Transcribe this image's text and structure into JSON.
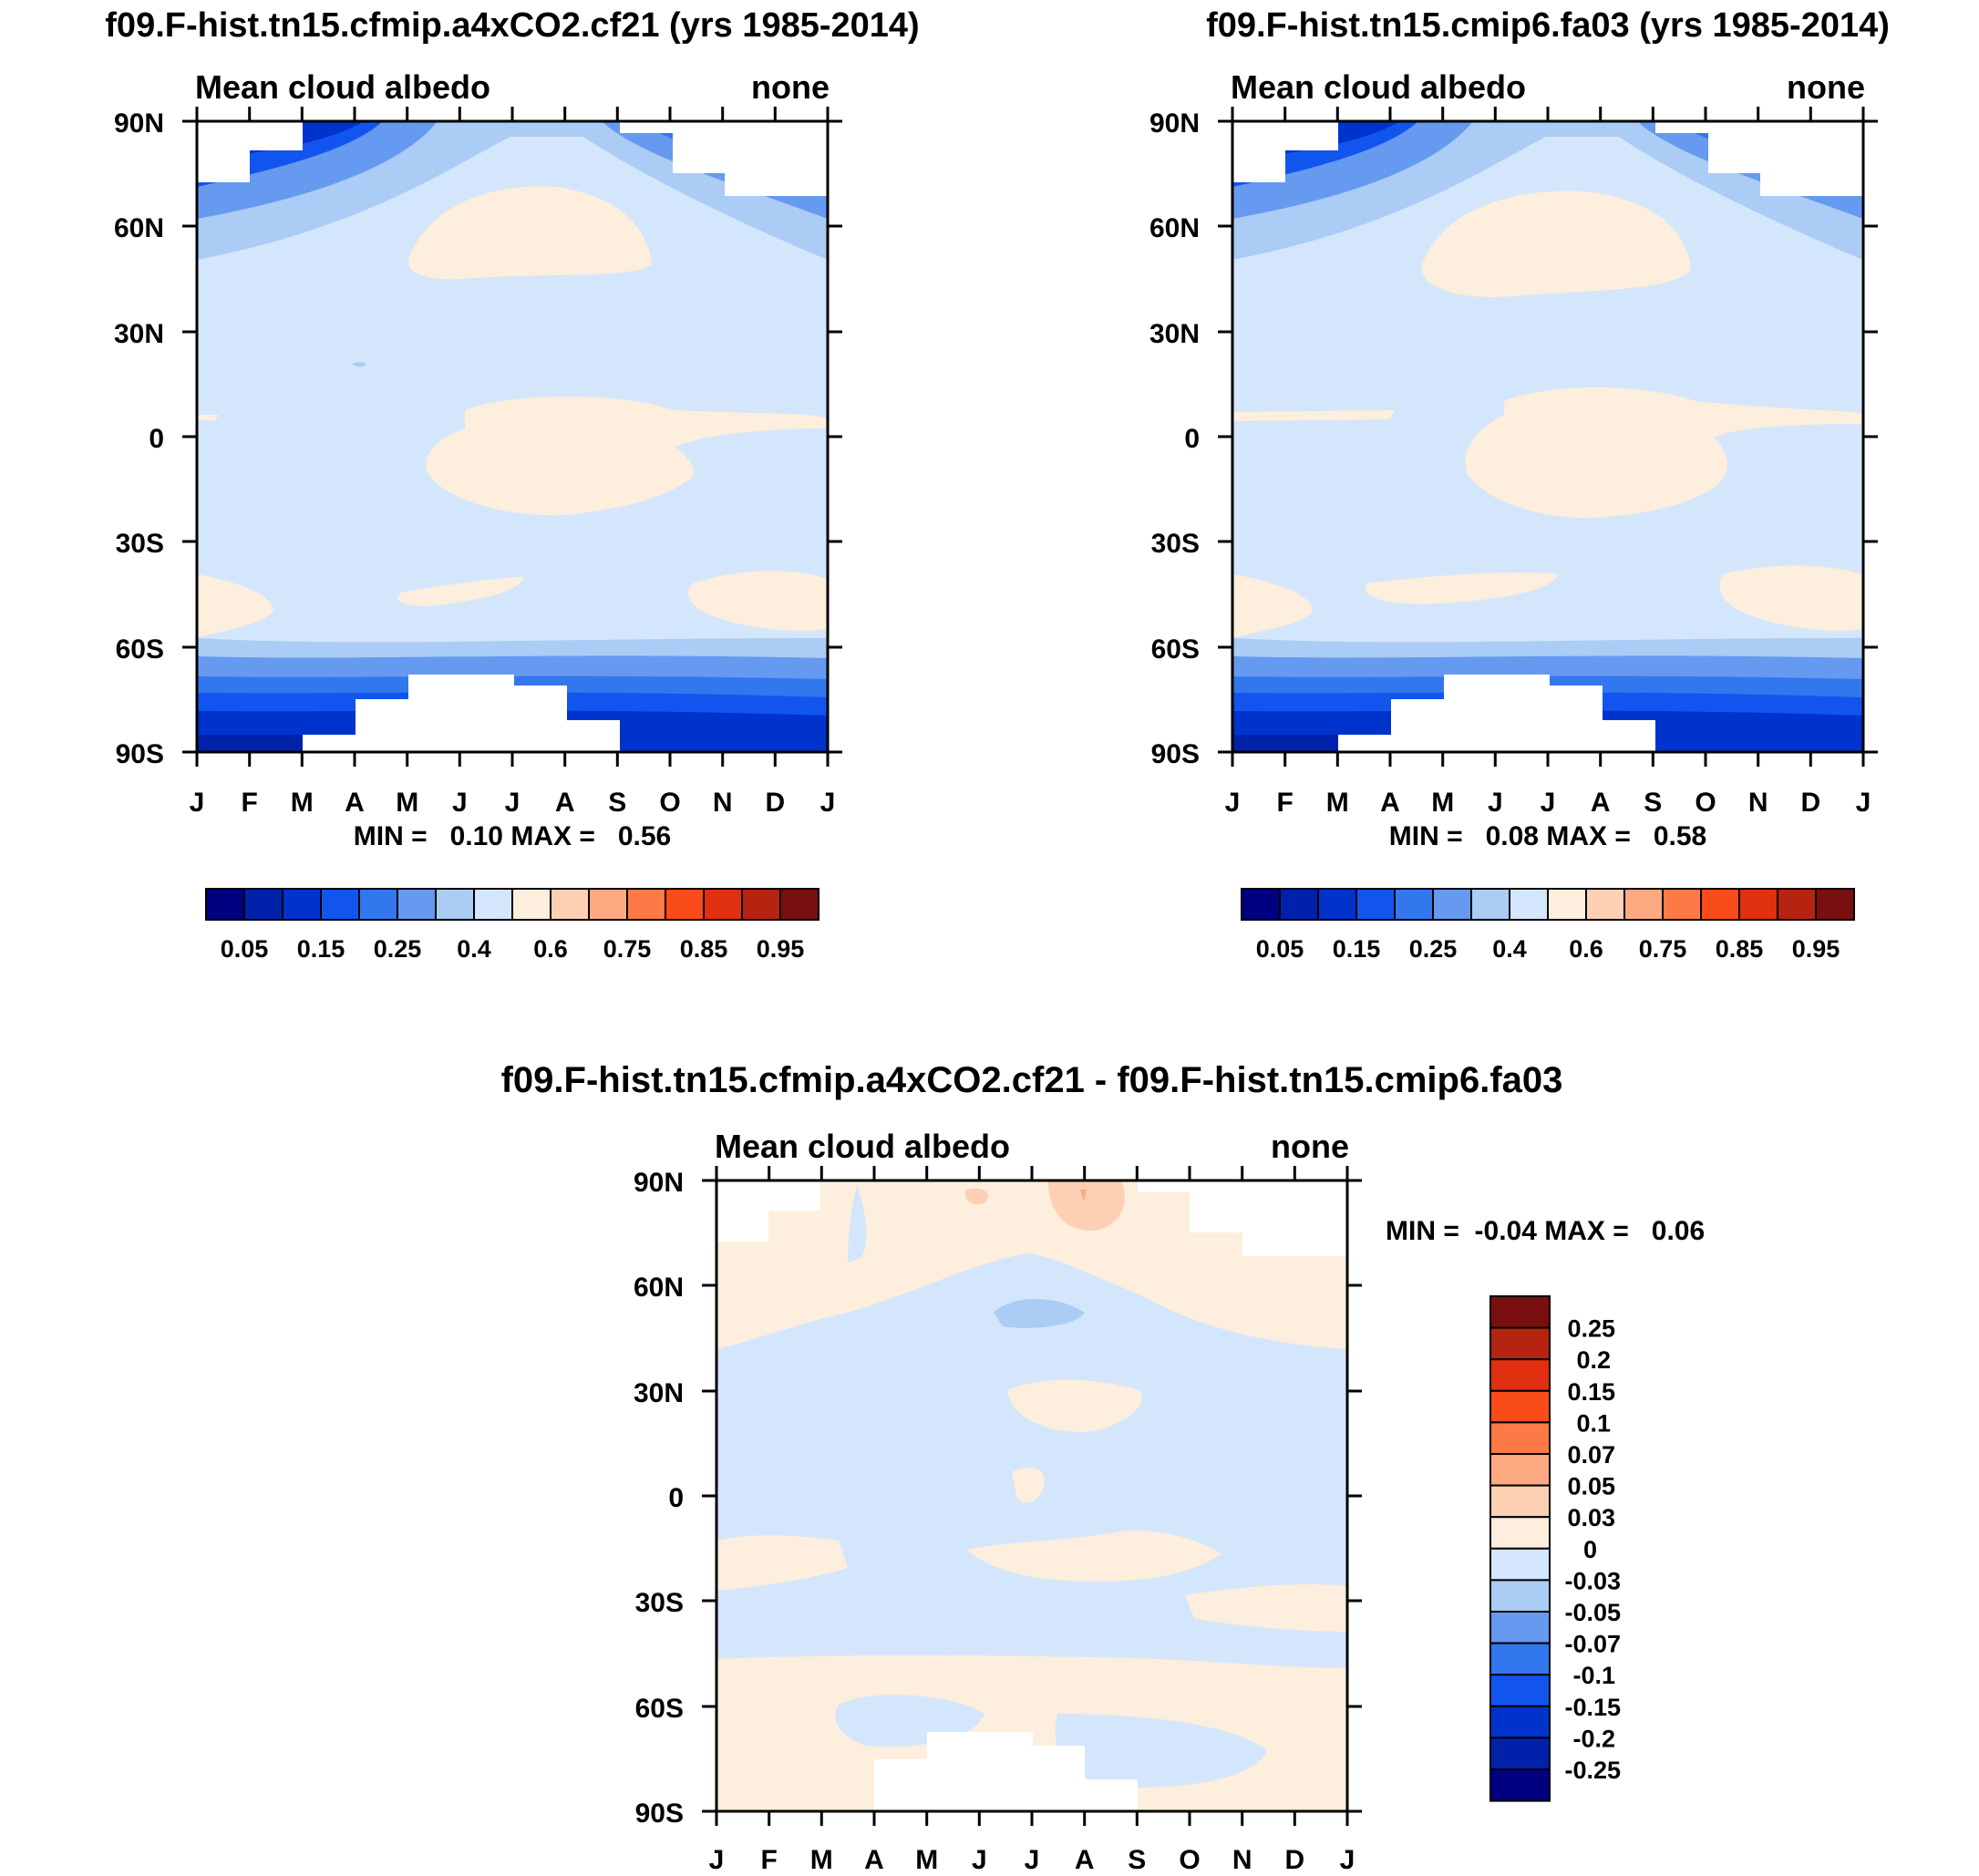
{
  "colors": {
    "seq": [
      "#000080",
      "#0022aa",
      "#0033cc",
      "#1155ee",
      "#3377ee",
      "#6699f0",
      "#aaccf5",
      "#d4e6fb",
      "#feeedd",
      "#fdd0b3",
      "#fda982",
      "#fd7a46",
      "#f94c1a",
      "#e03010",
      "#b42410",
      "#7a0f0f"
    ],
    "div": [
      "#000080",
      "#0022aa",
      "#0033cc",
      "#1155ee",
      "#3377ee",
      "#6699f0",
      "#aaccf5",
      "#d4e6fb",
      "#feeedd",
      "#fdd0b3",
      "#fda982",
      "#fd7a46",
      "#f94c1a",
      "#e03010",
      "#b42410",
      "#7a0f0f"
    ]
  },
  "chart_data": [
    {
      "type": "heatmap",
      "title": "f09.F-hist.tn15.cfmip.a4xCO2.cf21 (yrs 1985-2014)",
      "left_label": "Mean cloud albedo",
      "right_label": "none",
      "x_ticks": [
        "J",
        "F",
        "M",
        "A",
        "M",
        "J",
        "J",
        "A",
        "S",
        "O",
        "N",
        "D",
        "J"
      ],
      "y_ticks": [
        "90N",
        "60N",
        "30N",
        "0",
        "30S",
        "60S",
        "90S"
      ],
      "ylim": [
        -90,
        90
      ],
      "stats": "MIN =   0.10 MAX =   0.56",
      "colorbar": {
        "orientation": "horizontal",
        "labels": [
          "0.05",
          "0.15",
          "0.25",
          "0.4",
          "0.6",
          "0.75",
          "0.85",
          "0.95"
        ]
      }
    },
    {
      "type": "heatmap",
      "title": "f09.F-hist.tn15.cmip6.fa03 (yrs 1985-2014)",
      "left_label": "Mean cloud albedo",
      "right_label": "none",
      "x_ticks": [
        "J",
        "F",
        "M",
        "A",
        "M",
        "J",
        "J",
        "A",
        "S",
        "O",
        "N",
        "D",
        "J"
      ],
      "y_ticks": [
        "90N",
        "60N",
        "30N",
        "0",
        "30S",
        "60S",
        "90S"
      ],
      "ylim": [
        -90,
        90
      ],
      "stats": "MIN =   0.08 MAX =   0.58",
      "colorbar": {
        "orientation": "horizontal",
        "labels": [
          "0.05",
          "0.15",
          "0.25",
          "0.4",
          "0.6",
          "0.75",
          "0.85",
          "0.95"
        ]
      }
    },
    {
      "type": "heatmap",
      "title": "f09.F-hist.tn15.cfmip.a4xCO2.cf21 - f09.F-hist.tn15.cmip6.fa03",
      "left_label": "Mean cloud albedo",
      "right_label": "none",
      "x_ticks": [
        "J",
        "F",
        "M",
        "A",
        "M",
        "J",
        "J",
        "A",
        "S",
        "O",
        "N",
        "D",
        "J"
      ],
      "y_ticks": [
        "90N",
        "60N",
        "30N",
        "0",
        "30S",
        "60S",
        "90S"
      ],
      "ylim": [
        -90,
        90
      ],
      "stats": "MIN =  -0.04 MAX =   0.06",
      "colorbar": {
        "orientation": "vertical",
        "labels": [
          "0.25",
          "0.2",
          "0.15",
          "0.1",
          "0.07",
          "0.05",
          "0.03",
          "0",
          "-0.03",
          "-0.05",
          "-0.07",
          "-0.1",
          "-0.15",
          "-0.2",
          "-0.25"
        ]
      }
    }
  ]
}
